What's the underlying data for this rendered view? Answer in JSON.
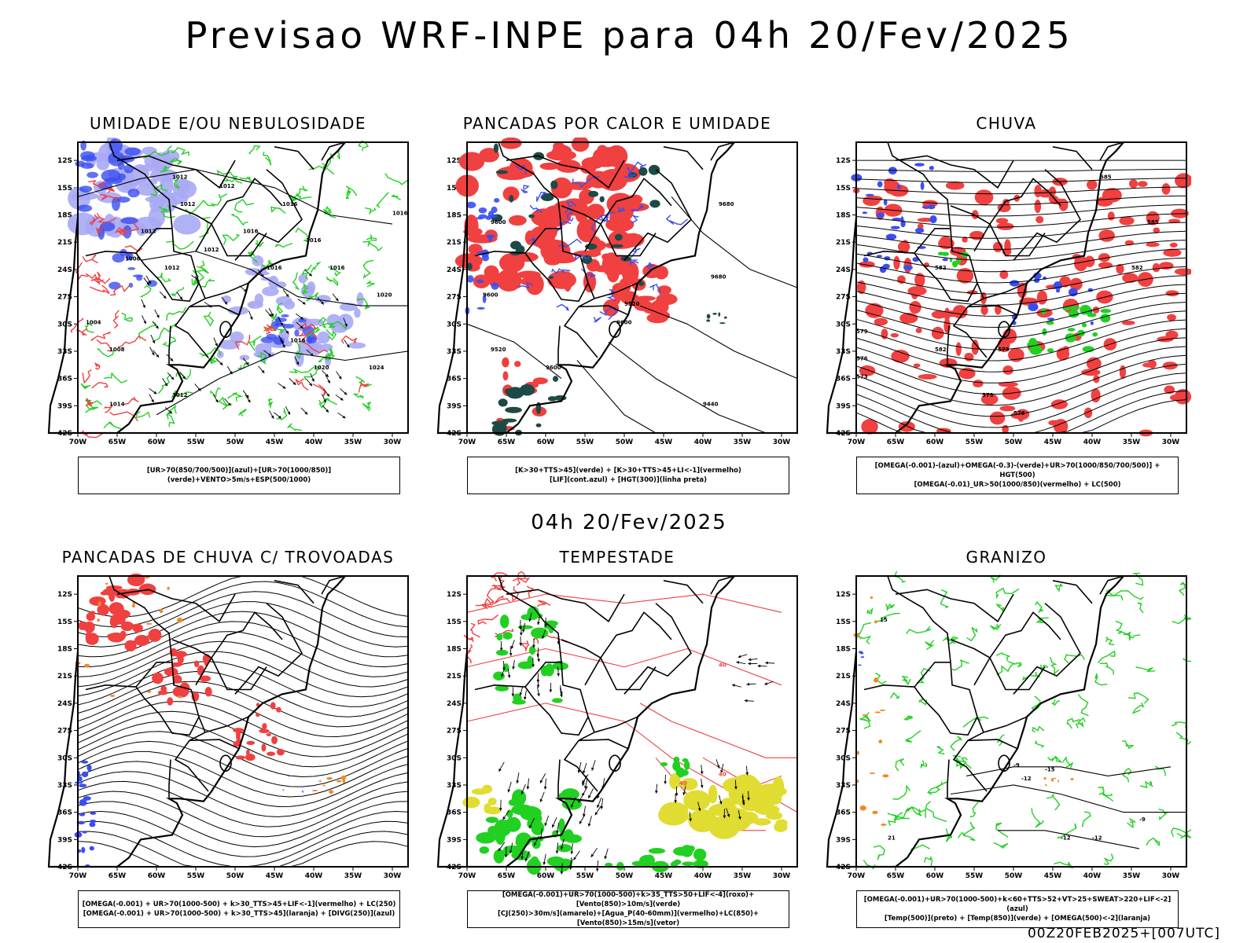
{
  "header": {
    "title": "Previsao WRF-INPE  para 04h 20/Fev/2025"
  },
  "middle_date": "04h 20/Fev/2025",
  "footer": "00Z20FEB2025+[007UTC]",
  "axes": {
    "lat_ticks": [
      "12S",
      "15S",
      "18S",
      "21S",
      "24S",
      "27S",
      "30S",
      "33S",
      "36S",
      "39S",
      "42S"
    ],
    "lon_ticks": [
      "70W",
      "65W",
      "60W",
      "55W",
      "50W",
      "45W",
      "40W",
      "35W",
      "30W"
    ]
  },
  "colors": {
    "blue": "#3a4ef0",
    "lightblue": "#a8a8f5",
    "green": "#22d022",
    "red": "#f04040",
    "darkgreen": "#1e4a46",
    "yellow": "#e0dc32",
    "orange": "#ee8a22"
  },
  "chart_data": [
    {
      "type": "heatmap",
      "title": "UMIDADE E/OU NEBULOSIDADE",
      "xlim": [
        -70,
        -28
      ],
      "ylim": [
        -42,
        -10
      ],
      "legend": [
        "[UR>70(850/700/500)](azul)+[UR>70(1000/850)](verde)+VENTO>5m/s+ESP(500/1000)"
      ],
      "contour_labels": [
        "1012",
        "1012",
        "1012",
        "1016",
        "1016",
        "1012",
        "1016",
        "1016",
        "1020",
        "1016",
        "1020",
        "1024",
        "1012",
        "1008",
        "1004",
        "1008",
        "1012",
        "1014",
        "1012",
        "1016",
        "1016"
      ]
    },
    {
      "type": "heatmap",
      "title": "PANCADAS POR CALOR E UMIDADE",
      "xlim": [
        -70,
        -28
      ],
      "ylim": [
        -42,
        -10
      ],
      "legend": [
        "[K>30+TTS>45](verde)  +  [K>30+TTS>45+LI<-1](vermelho)",
        "[LIF](cont.azul)  +  [HGT(300)](linha preta)"
      ],
      "contour_labels": [
        "9600",
        "9680",
        "9680",
        "9600",
        "9520",
        "9520",
        "9600",
        "9440",
        "9600"
      ]
    },
    {
      "type": "heatmap",
      "title": "CHUVA",
      "xlim": [
        -70,
        -28
      ],
      "ylim": [
        -42,
        -10
      ],
      "legend": [
        "[OMEGA(-0.001)-(azul)+OMEGA(-0.3)-(verde)+UR>70(1000/850/700/500)]  +  HGT(500)",
        "[OMEGA(-0.01)_UR>50(1000/850)(vermelho)  +  LC(500)"
      ],
      "contour_labels": [
        "582",
        "585",
        "585",
        "582",
        "579",
        "576",
        "573",
        "576",
        "573",
        "579",
        "582"
      ]
    },
    {
      "type": "heatmap",
      "title": "PANCADAS DE CHUVA C/ TROVOADAS",
      "xlim": [
        -70,
        -28
      ],
      "ylim": [
        -42,
        -10
      ],
      "legend": [
        "[OMEGA(-0.001)  +  UR>70(1000-500)  +  k>30_TTS>45+LIF<-1](vermelho)  +  LC(250)",
        "[OMEGA(-0.001)  +  UR>70(1000-500)  +  k>30_TTS>45](laranja)  +  [DIVG(250)](azul)"
      ],
      "contour_labels": []
    },
    {
      "type": "heatmap",
      "title": "TEMPESTADE",
      "xlim": [
        -70,
        -28
      ],
      "ylim": [
        -42,
        -10
      ],
      "legend": [
        "[OMEGA(-0.001)+UR>70(1000-500)+k>35_TTS>50+LIF<-4](roxo)+[Vento(850)>10m/s](verde)",
        "[CJ(250)>30m/s](amarelo)+[Agua_P(40-60mm)](vermelho)+LC(850)+[Vento(850)>15m/s](vetor)"
      ],
      "contour_labels": [
        "40",
        "40",
        "40"
      ]
    },
    {
      "type": "heatmap",
      "title": "GRANIZO",
      "xlim": [
        -70,
        -28
      ],
      "ylim": [
        -42,
        -10
      ],
      "legend": [
        "[OMEGA(-0.001)+UR>70(1000-500)+k<60+TTS>52+VT>25+SWEAT>220+LIF<-2](azul)",
        "[Temp(500)](preto)  +  [Temp(850)](verde)  +  [OMEGA(500)<-2](laranja)"
      ],
      "contour_labels": [
        "-9",
        "-12",
        "-15",
        "-12",
        "-12",
        "21",
        "-9",
        "15"
      ]
    }
  ]
}
